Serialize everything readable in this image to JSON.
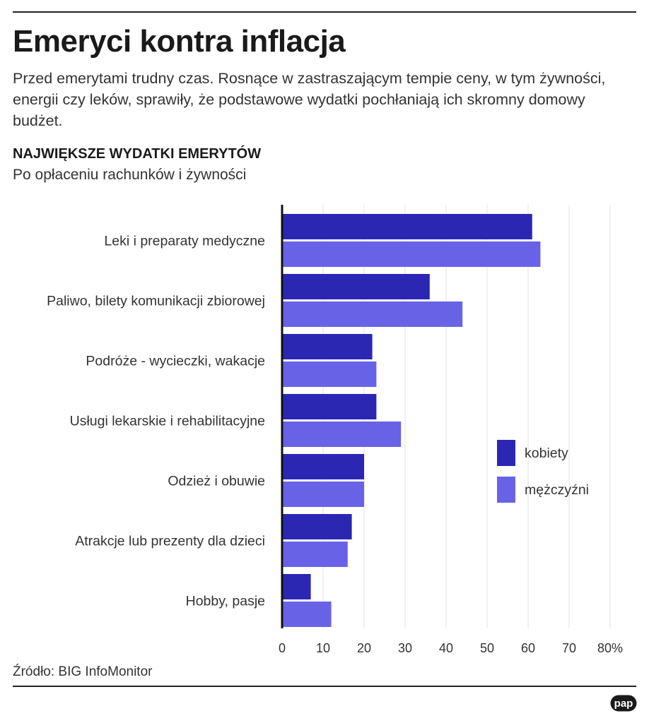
{
  "page": {
    "title": "Emeryci kontra inflacja",
    "lede": "Przed emerytami trudny czas. Rosnące w zastraszającym tempie ceny, w tym żywności, energii czy leków, sprawiły, że podstawowe wydatki pochłaniają ich skromny domowy budżet.",
    "source": "Źródło: BIG InfoMonitor",
    "logo_text": "pap"
  },
  "chart_data": {
    "type": "bar",
    "orientation": "horizontal",
    "title": "NAJWIĘKSZE WYDATKI EMERYTÓW",
    "subtitle": "Po opłaceniu rachunków i żywności",
    "categories": [
      "Leki i preparaty medyczne",
      "Paliwo, bilety komunikacji zbiorowej",
      "Podróże - wycieczki, wakacje",
      "Usługi lekarskie i rehabilitacyjne",
      "Odzież i obuwie",
      "Atrakcje lub prezenty dla dzieci",
      "Hobby, pasje"
    ],
    "series": [
      {
        "name": "kobiety",
        "color": "#2b27b3",
        "values": [
          61,
          36,
          22,
          23,
          20,
          17,
          7
        ]
      },
      {
        "name": "mężczyźni",
        "color": "#6863e6",
        "values": [
          63,
          44,
          23,
          29,
          20,
          16,
          12
        ]
      }
    ],
    "xlim": [
      0,
      80
    ],
    "x_ticks": [
      0,
      10,
      20,
      30,
      40,
      50,
      60,
      70,
      80
    ],
    "x_tick_labels": [
      "0",
      "10",
      "20",
      "30",
      "40",
      "50",
      "60",
      "70",
      "80%"
    ],
    "grid": true,
    "legend": "right"
  }
}
